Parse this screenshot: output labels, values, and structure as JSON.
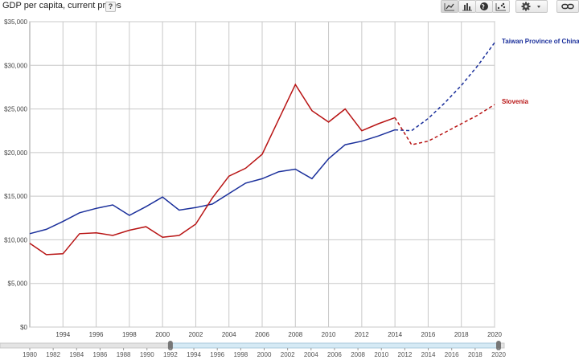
{
  "header": {
    "title": "GDP per capita, current prices",
    "help_label": "?"
  },
  "toolbar": {
    "buttons": [
      {
        "name": "line-chart-button",
        "icon": "line-chart-icon",
        "active": true
      },
      {
        "name": "bar-chart-button",
        "icon": "bar-chart-icon",
        "active": false
      },
      {
        "name": "map-button",
        "icon": "globe-icon",
        "active": false
      },
      {
        "name": "scatter-button",
        "icon": "scatter-icon",
        "active": false
      },
      {
        "name": "settings-button",
        "icon": "gear-icon",
        "active": false
      },
      {
        "name": "link-button",
        "icon": "link-icon",
        "active": false
      }
    ]
  },
  "colors": {
    "taiwan": "#1a2f9b",
    "slovenia": "#b81414",
    "grid": "#c8c8c8",
    "slider_fill": "#d6eaf5"
  },
  "chart_data": {
    "type": "line",
    "title": "GDP per capita, current prices",
    "ylim": [
      0,
      35000
    ],
    "xlim": [
      1992,
      2020
    ],
    "y_ticks": [
      "$0",
      "$5,000",
      "$10,000",
      "$15,000",
      "$20,000",
      "$25,000",
      "$30,000",
      "$35,000"
    ],
    "x_ticks": [
      "1994",
      "1996",
      "1998",
      "2000",
      "2002",
      "2004",
      "2006",
      "2008",
      "2010",
      "2012",
      "2014",
      "2016",
      "2018",
      "2020"
    ],
    "grid": true,
    "series": [
      {
        "name": "Taiwan Province of China",
        "x": [
          1992,
          1993,
          1994,
          1995,
          1996,
          1997,
          1998,
          1999,
          2000,
          2001,
          2002,
          2003,
          2004,
          2005,
          2006,
          2007,
          2008,
          2009,
          2010,
          2011,
          2012,
          2013,
          2014,
          2015,
          2016,
          2017,
          2018,
          2019,
          2020
        ],
        "values": [
          10700,
          11200,
          12100,
          13100,
          13600,
          14000,
          12800,
          13800,
          14900,
          13400,
          13700,
          14100,
          15300,
          16500,
          17000,
          17800,
          18100,
          17000,
          19300,
          20900,
          21300,
          21900,
          22600,
          22500,
          23900,
          25700,
          27700,
          30000,
          32600
        ],
        "forecast_from": 2015
      },
      {
        "name": "Slovenia",
        "x": [
          1992,
          1993,
          1994,
          1995,
          1996,
          1997,
          1998,
          1999,
          2000,
          2001,
          2002,
          2003,
          2004,
          2005,
          2006,
          2007,
          2008,
          2009,
          2010,
          2011,
          2012,
          2013,
          2014,
          2015,
          2016,
          2017,
          2018,
          2019,
          2020
        ],
        "values": [
          9600,
          8300,
          8400,
          10700,
          10800,
          10500,
          11100,
          11500,
          10300,
          10500,
          11800,
          14800,
          17300,
          18200,
          19800,
          23800,
          27800,
          24800,
          23500,
          25000,
          22500,
          23300,
          24000,
          20900,
          21300,
          22300,
          23300,
          24300,
          25500
        ],
        "forecast_from": 2015
      }
    ]
  },
  "timeline": {
    "labels": [
      "1980",
      "1982",
      "1984",
      "1986",
      "1988",
      "1990",
      "1992",
      "1994",
      "1996",
      "1998",
      "2000",
      "2002",
      "2004",
      "2006",
      "2008",
      "2010",
      "2012",
      "2014",
      "2016",
      "2018",
      "2020"
    ],
    "selected_range": [
      1992,
      2020
    ],
    "full_range": [
      1980,
      2020
    ]
  }
}
